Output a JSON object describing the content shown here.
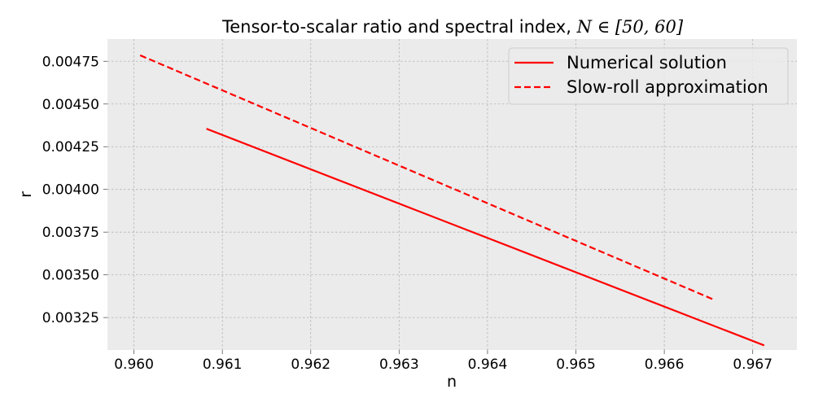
{
  "chart_data": {
    "type": "line",
    "title": "Tensor-to-scalar ratio and spectral index, ",
    "title_math": "N ∈ [50, 60]",
    "xlabel": "n",
    "ylabel": "r",
    "xlim": [
      0.9597,
      0.9675
    ],
    "ylim": [
      0.00306,
      0.00488
    ],
    "xticks": [
      0.96,
      0.961,
      0.962,
      0.963,
      0.964,
      0.965,
      0.966,
      0.967
    ],
    "xtick_labels": [
      "0.960",
      "0.961",
      "0.962",
      "0.963",
      "0.964",
      "0.965",
      "0.966",
      "0.967"
    ],
    "yticks": [
      0.00325,
      0.0035,
      0.00375,
      0.004,
      0.00425,
      0.0045,
      0.00475
    ],
    "ytick_labels": [
      "0.00325",
      "0.00350",
      "0.00375",
      "0.00400",
      "0.00425",
      "0.00450",
      "0.00475"
    ],
    "grid": true,
    "background": "#ebebeb",
    "legend_position": "upper-right",
    "series": [
      {
        "name": "Numerical solution",
        "color": "#ff0000",
        "linestyle": "solid",
        "x": [
          0.96082,
          0.96713
        ],
        "y": [
          0.004355,
          0.003087
        ]
      },
      {
        "name": "Slow-roll approximation",
        "color": "#ff0000",
        "linestyle": "dashed",
        "x": [
          0.96007,
          0.96655
        ],
        "y": [
          0.004785,
          0.003357
        ]
      }
    ]
  }
}
